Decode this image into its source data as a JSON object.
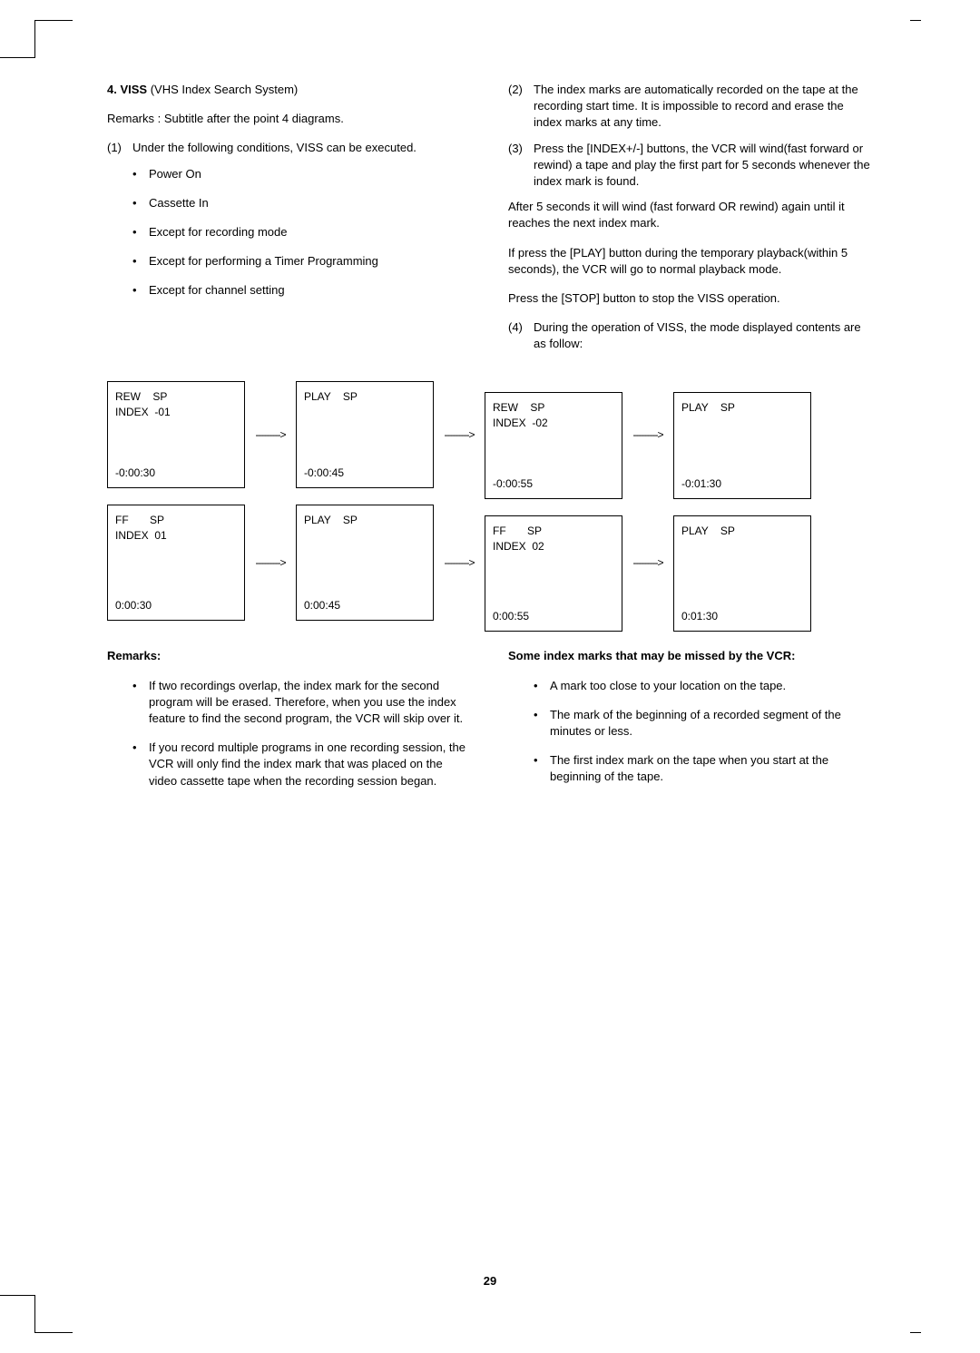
{
  "page_number": "29",
  "left": {
    "section_number": "4.",
    "section_title_bold": "VISS",
    "section_title_rest": " (VHS Index Search System)",
    "remarks_intro": "Remarks : Subtitle after the point 4 diagrams.",
    "item1_num": "(1)",
    "item1_text": "Under the following conditions, VISS can be executed.",
    "bullets": [
      "Power On",
      "Cassette In",
      "Except for recording mode",
      "Except for performing a Timer Programming",
      "Except for channel setting"
    ]
  },
  "right": {
    "item2_num": "(2)",
    "item2_text": "The index marks are automatically recorded on the tape at the recording start time. It is impossible to record and erase the index marks at any time.",
    "item3_num": "(3)",
    "item3_text": "Press the [INDEX+/-] buttons, the VCR will wind(fast forward or rewind) a tape and play the first part for 5 seconds whenever the index mark is found.",
    "para_a": "After 5 seconds it will wind (fast forward OR rewind) again until it reaches the next index mark.",
    "para_b": "If press the [PLAY] button during the temporary playback(within 5 seconds), the VCR will go to normal playback mode.",
    "para_c": "Press the [STOP] button to stop the VISS operation.",
    "item4_num": "(4)",
    "item4_text": "During the operation of VISS, the mode displayed contents are as follow:"
  },
  "diagram": {
    "arrow": "--------->",
    "row1": [
      {
        "top": "REW    SP\nINDEX  -01",
        "bot": "-0:00:30"
      },
      {
        "top": "PLAY    SP",
        "bot": "-0:00:45"
      },
      {
        "top": "REW    SP\nINDEX  -02",
        "bot": "-0:00:55"
      },
      {
        "top": "PLAY    SP",
        "bot": "-0:01:30"
      }
    ],
    "row2": [
      {
        "top": "FF       SP\nINDEX  01",
        "bot": "0:00:30"
      },
      {
        "top": "PLAY    SP",
        "bot": "0:00:45"
      },
      {
        "top": "FF       SP\nINDEX  02",
        "bot": "0:00:55"
      },
      {
        "top": "PLAY    SP",
        "bot": "0:01:30"
      }
    ]
  },
  "lower_left": {
    "heading": "Remarks:",
    "bullets": [
      "If two recordings overlap, the index mark for the second program will be erased. Therefore, when you use the index feature to find the second program, the VCR will skip over it.",
      "If you record multiple programs in one recording session, the VCR will only find the index mark that was placed on the video cassette tape when the recording session began."
    ]
  },
  "lower_right": {
    "heading": "Some index marks that may be missed by the VCR:",
    "bullets": [
      "A mark too close to your location on the tape.",
      "The mark of the beginning of a recorded segment of the minutes or less.",
      "The first index mark on the tape when you start at the beginning of the tape."
    ]
  }
}
